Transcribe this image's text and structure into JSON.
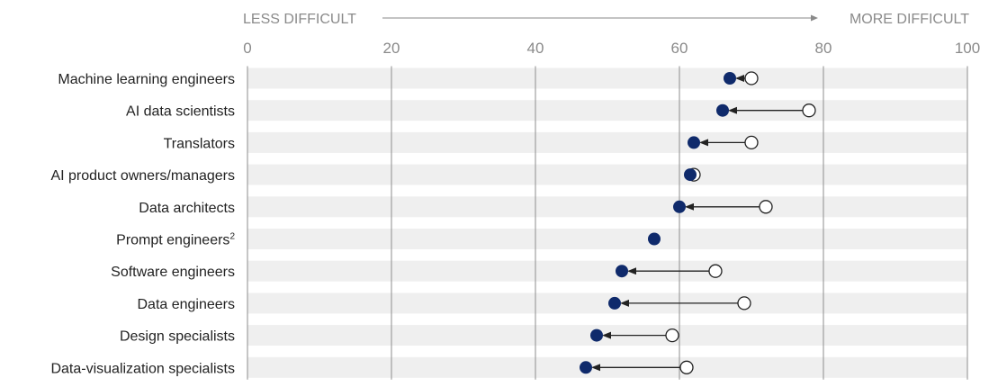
{
  "chart_data": {
    "type": "dumbbell",
    "title": "",
    "xlabel": "",
    "ylabel": "",
    "xlim": [
      0,
      100
    ],
    "xticks": [
      0,
      20,
      40,
      60,
      80,
      100
    ],
    "direction": {
      "left_label": "LESS DIFFICULT",
      "right_label": "MORE DIFFICULT"
    },
    "grid": true,
    "colors": {
      "filled": "#0f2a6b",
      "open_fill": "#ffffff",
      "band": "#efefef",
      "gridline": "#8c8c8c",
      "arrow": "#222222"
    },
    "categories": [
      {
        "label": "Machine learning engineers",
        "sup": "",
        "open": 70,
        "filled": 67
      },
      {
        "label": "AI data scientists",
        "sup": "",
        "open": 78,
        "filled": 66
      },
      {
        "label": "Translators",
        "sup": "",
        "open": 70,
        "filled": 62
      },
      {
        "label": "AI product owners/managers",
        "sup": "",
        "open": 62,
        "filled": 61.5
      },
      {
        "label": "Data architects",
        "sup": "",
        "open": 72,
        "filled": 60
      },
      {
        "label": "Prompt engineers",
        "sup": "2",
        "open": null,
        "filled": 56.5
      },
      {
        "label": "Software engineers",
        "sup": "",
        "open": 65,
        "filled": 52
      },
      {
        "label": "Data engineers",
        "sup": "",
        "open": 69,
        "filled": 51
      },
      {
        "label": "Design specialists",
        "sup": "",
        "open": 59,
        "filled": 48.5
      },
      {
        "label": "Data-visualization specialists",
        "sup": "",
        "open": 61,
        "filled": 47
      }
    ]
  }
}
